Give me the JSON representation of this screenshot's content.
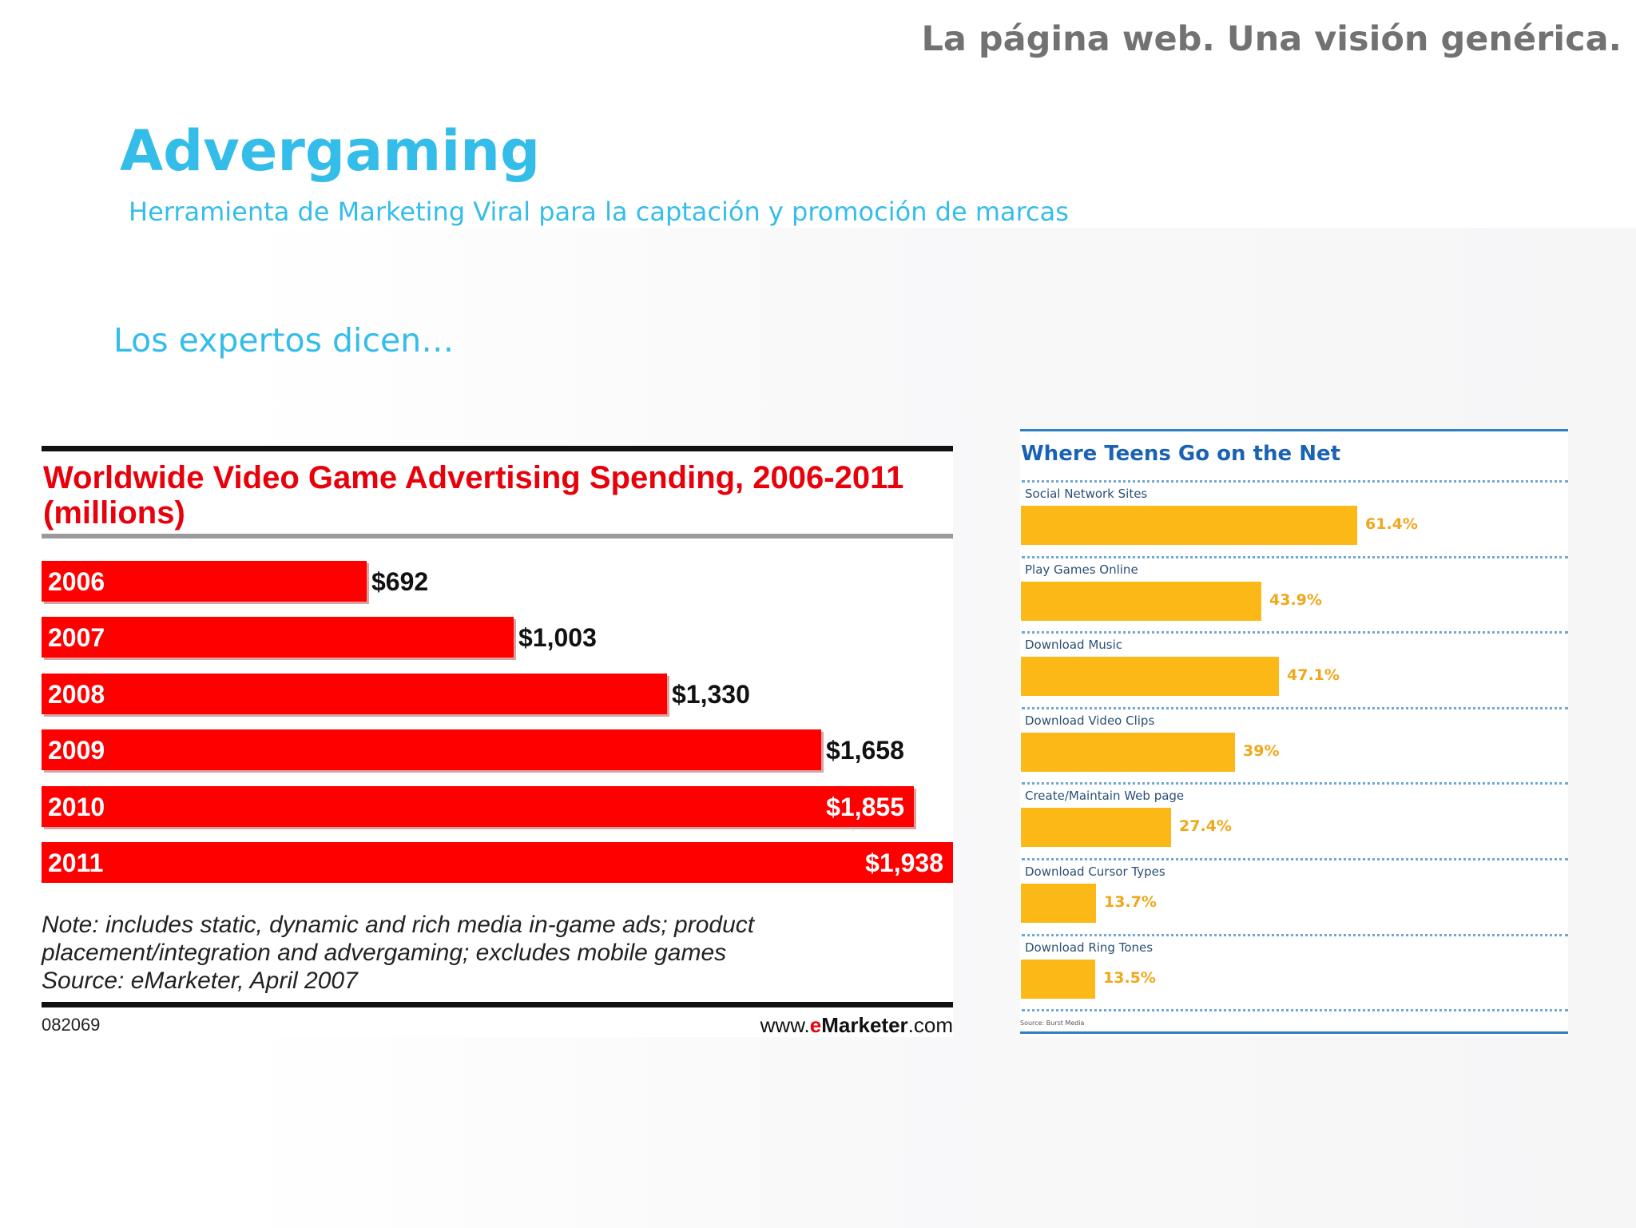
{
  "header": {
    "slide_title": "La página web. Una visión genérica.",
    "title": "Advergaming",
    "subtitle": "Herramienta de Marketing Viral para la captación y promoción de marcas",
    "lead": "Los expertos dicen…"
  },
  "chart_data": [
    {
      "type": "bar",
      "orientation": "horizontal",
      "title": "Worldwide Video Game Advertising Spending, 2006-2011 (millions)",
      "categories": [
        "2006",
        "2007",
        "2008",
        "2009",
        "2010",
        "2011"
      ],
      "values": [
        692,
        1003,
        1330,
        1658,
        1855,
        1938
      ],
      "value_labels": [
        "$692",
        "$1,003",
        "$1,330",
        "$1,658",
        "$1,855",
        "$1,938"
      ],
      "xlim": [
        0,
        1938
      ],
      "colors": {
        "bar": "#ff0000",
        "title": "#e8000b"
      },
      "note": [
        "Note: includes static, dynamic and rich media in-game ads; product",
        "placement/integration and advergaming; excludes mobile games",
        "Source: eMarketer, April 2007"
      ],
      "code": "082069",
      "brand": {
        "prefix": "www.",
        "em": "e",
        "name": "Marketer",
        "suffix": ".com"
      }
    },
    {
      "type": "bar",
      "orientation": "horizontal",
      "title": "Where Teens Go on the Net",
      "categories": [
        "Social Network Sites",
        "Play Games Online",
        "Download Music",
        "Download Video Clips",
        "Create/Maintain Web page",
        "Download Cursor Types",
        "Download Ring Tones"
      ],
      "values": [
        61.4,
        43.9,
        47.1,
        39,
        27.4,
        13.7,
        13.5
      ],
      "value_labels": [
        "61.4%",
        "43.9%",
        "47.1%",
        "39%",
        "27.4%",
        "13.7%",
        "13.5%"
      ],
      "xlim": [
        0,
        100
      ],
      "colors": {
        "bar": "#fbb817",
        "title": "#1a63b3"
      },
      "source": "Source: Burst Media"
    }
  ]
}
